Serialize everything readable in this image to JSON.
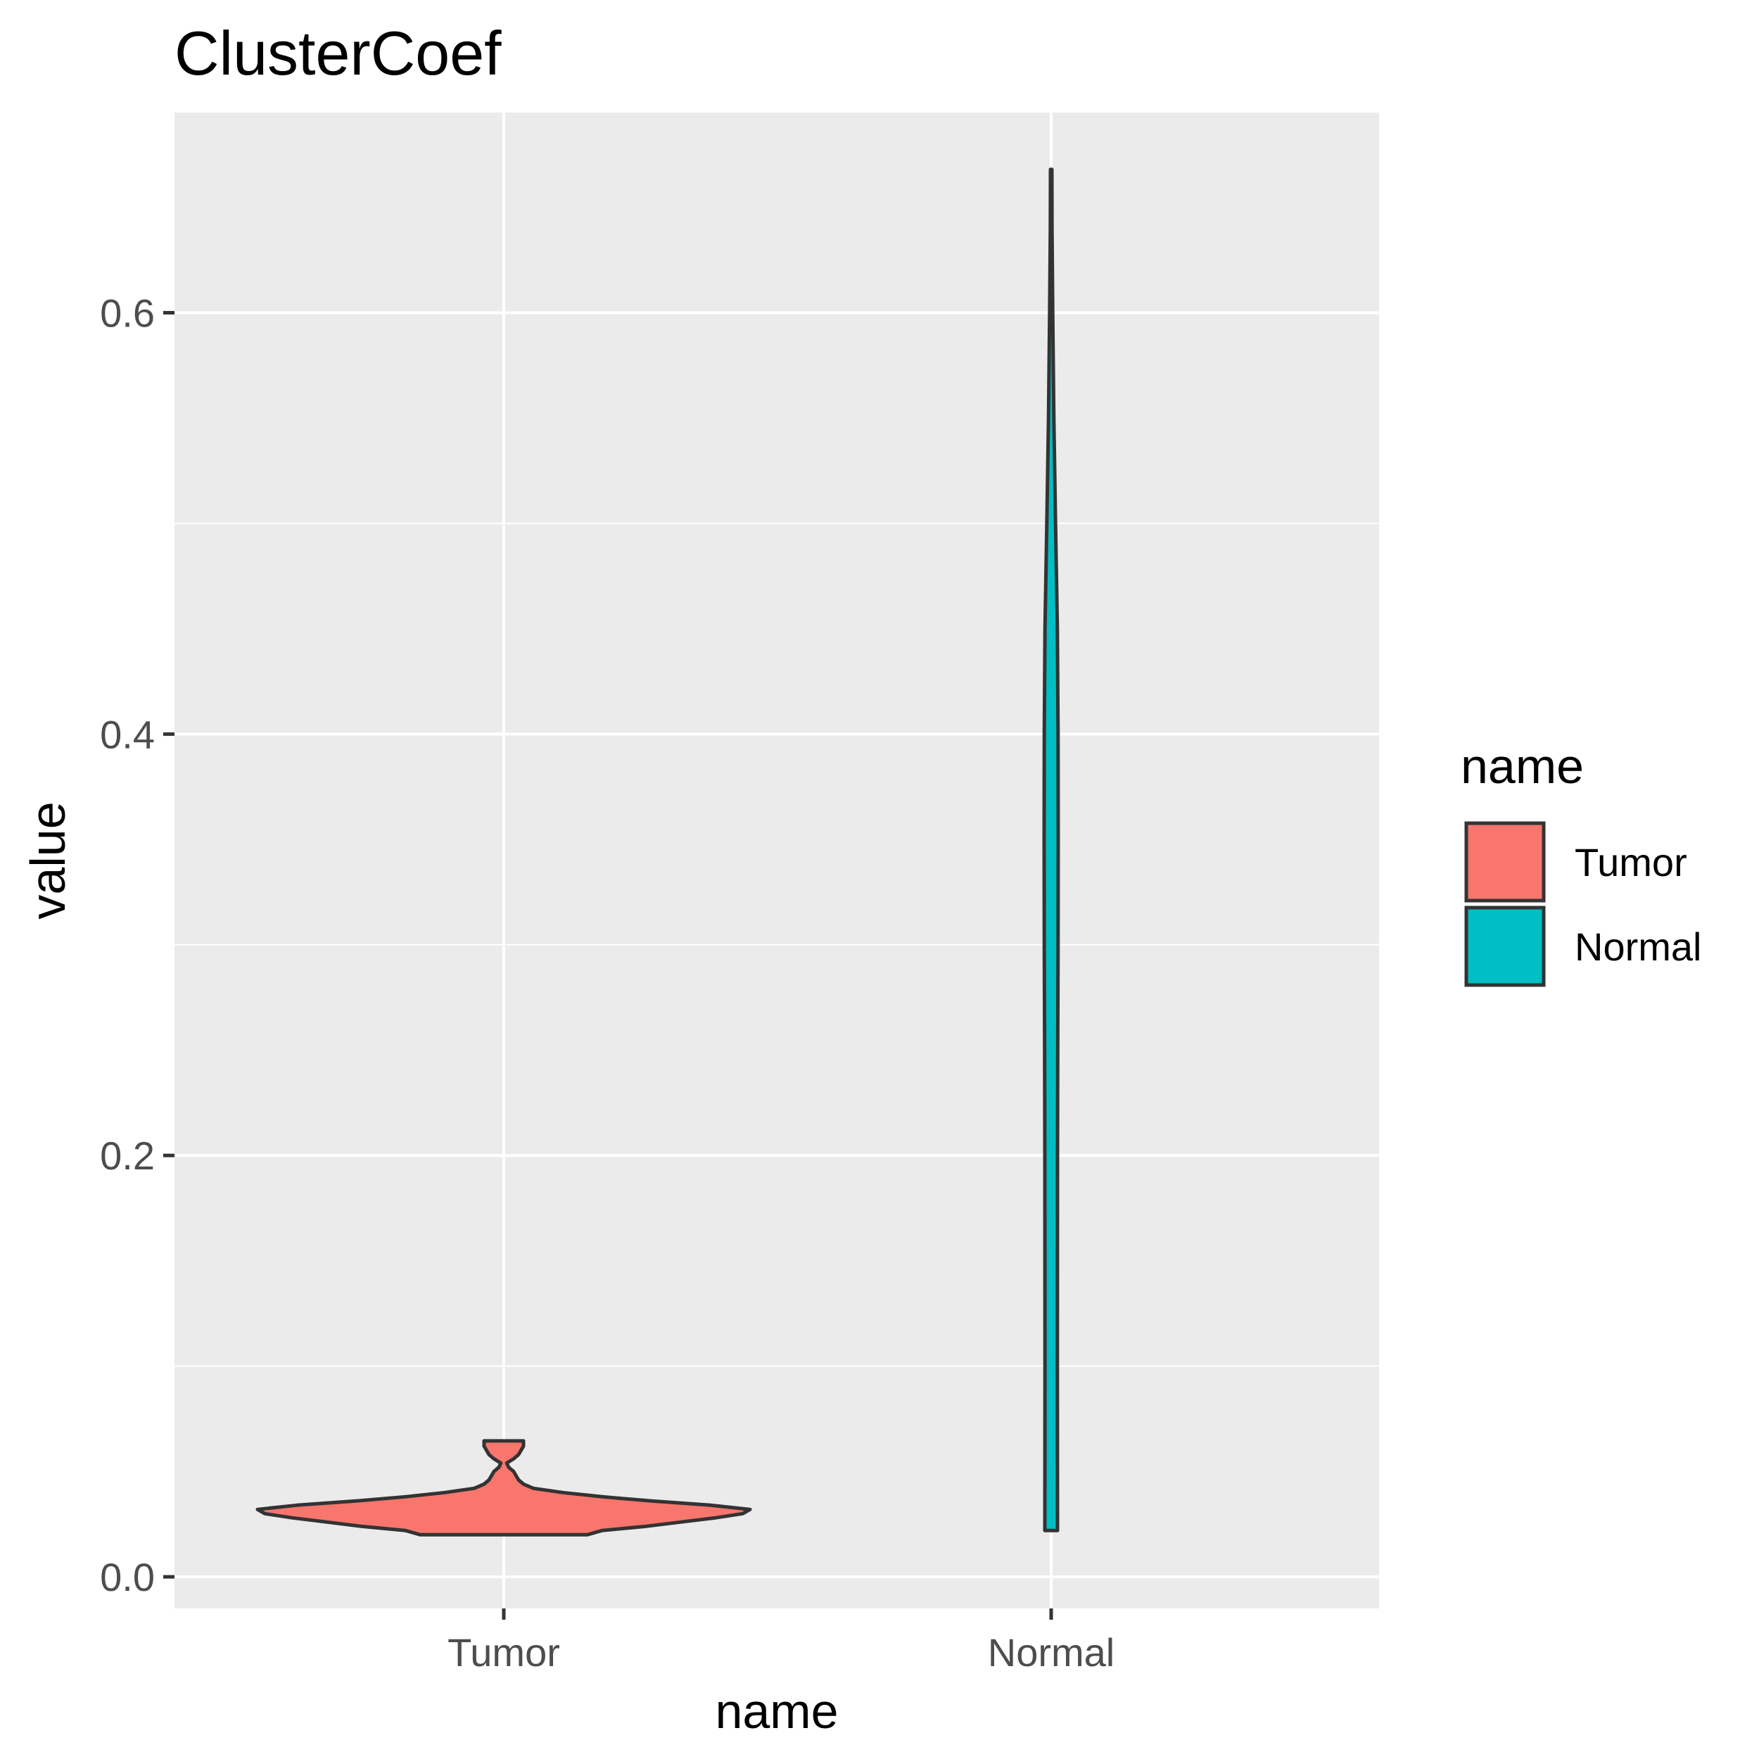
{
  "chart_data": {
    "type": "violin",
    "title": "ClusterCoef",
    "xlabel": "name",
    "ylabel": "value",
    "categories": [
      "Tumor",
      "Normal"
    ],
    "ylim": [
      -0.015,
      0.695
    ],
    "y_ticks": [
      0.0,
      0.2,
      0.4,
      0.6
    ],
    "y_tick_labels": [
      "0.0",
      "0.2",
      "0.4",
      "0.6"
    ],
    "grid": true,
    "legend": {
      "title": "name",
      "position": "right",
      "entries": [
        "Tumor",
        "Normal"
      ]
    },
    "colors": {
      "Tumor": "#F8766D",
      "Normal": "#00BFC4",
      "outline": "#333333",
      "panel": "#EBEBEB",
      "grid": "#FFFFFF"
    },
    "series": [
      {
        "name": "Tumor",
        "density_profile": [
          [
            0.02,
            0.34
          ],
          [
            0.022,
            0.4
          ],
          [
            0.024,
            0.58
          ],
          [
            0.026,
            0.72
          ],
          [
            0.028,
            0.86
          ],
          [
            0.03,
            0.97
          ],
          [
            0.032,
            1.0
          ],
          [
            0.034,
            0.84
          ],
          [
            0.036,
            0.6
          ],
          [
            0.038,
            0.4
          ],
          [
            0.04,
            0.24
          ],
          [
            0.042,
            0.12
          ],
          [
            0.044,
            0.08
          ],
          [
            0.046,
            0.06
          ],
          [
            0.048,
            0.05
          ],
          [
            0.05,
            0.04
          ],
          [
            0.052,
            0.02
          ],
          [
            0.054,
            0.012
          ],
          [
            0.056,
            0.04
          ],
          [
            0.058,
            0.06
          ],
          [
            0.06,
            0.07
          ],
          [
            0.062,
            0.08
          ],
          [
            0.0645,
            0.08
          ]
        ]
      },
      {
        "name": "Normal",
        "density_profile": [
          [
            0.022,
            0.9
          ],
          [
            0.1,
            0.88
          ],
          [
            0.2,
            0.9
          ],
          [
            0.25,
            0.93
          ],
          [
            0.3,
            0.98
          ],
          [
            0.35,
            1.0
          ],
          [
            0.4,
            0.98
          ],
          [
            0.45,
            0.88
          ],
          [
            0.5,
            0.62
          ],
          [
            0.55,
            0.38
          ],
          [
            0.6,
            0.22
          ],
          [
            0.64,
            0.12
          ],
          [
            0.668,
            0.1
          ]
        ]
      }
    ]
  }
}
